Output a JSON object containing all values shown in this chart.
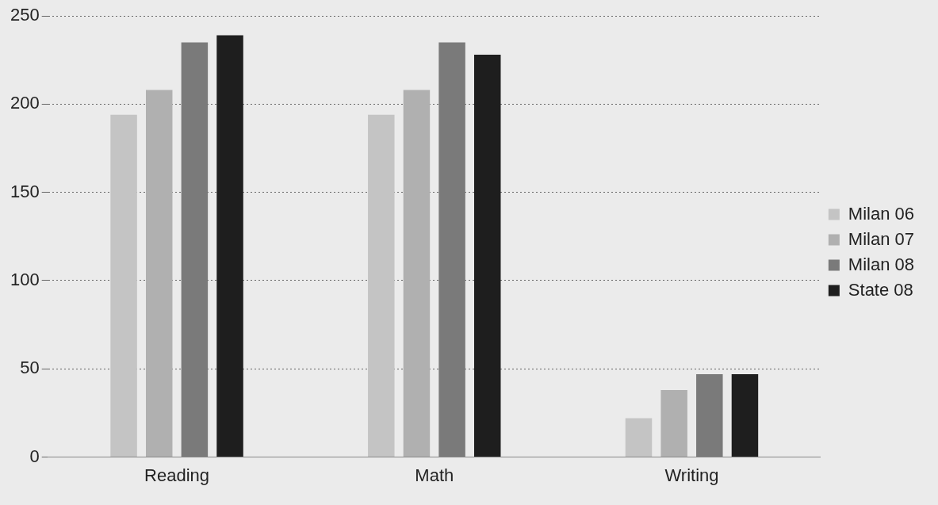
{
  "chart_data": {
    "type": "bar",
    "categories": [
      "Reading",
      "Math",
      "Writing"
    ],
    "series": [
      {
        "name": "Milan 06",
        "color": "#c4c4c4",
        "values": [
          194,
          194,
          22
        ]
      },
      {
        "name": "Milan 07",
        "color": "#b0b0b0",
        "values": [
          208,
          208,
          38
        ]
      },
      {
        "name": "Milan 08",
        "color": "#7a7a7a",
        "values": [
          235,
          235,
          47
        ]
      },
      {
        "name": "State 08",
        "color": "#1e1e1e",
        "values": [
          239,
          228,
          47
        ]
      }
    ],
    "ylim": [
      0,
      250
    ],
    "yticks": [
      0,
      50,
      100,
      150,
      200,
      250
    ],
    "grid": "y",
    "legend": "right"
  }
}
